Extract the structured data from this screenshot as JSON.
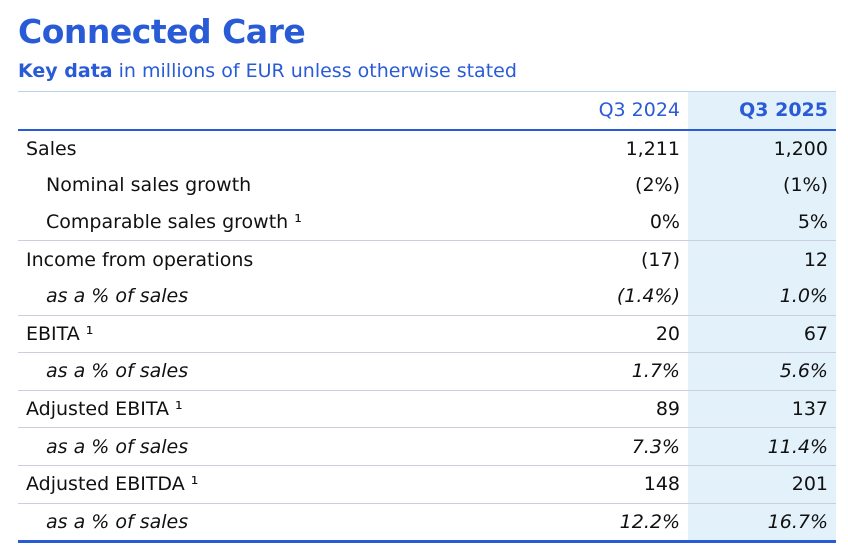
{
  "header": {
    "title": "Connected Care",
    "subtitle_bold": "Key data",
    "subtitle_rest": "in millions of EUR unless otherwise stated"
  },
  "table": {
    "columns": [
      "Q3 2024",
      "Q3 2025"
    ],
    "rows": [
      [
        "Sales",
        "1,211",
        "1,200"
      ],
      [
        "Nominal sales growth",
        "(2%)",
        "(1%)"
      ],
      [
        "Comparable sales growth ¹",
        "0%",
        "5%"
      ],
      [
        "Income from operations",
        "(17)",
        "12"
      ],
      [
        "as a % of sales",
        "(1.4%)",
        "1.0%"
      ],
      [
        "EBITA ¹",
        "20",
        "67"
      ],
      [
        "as a % of sales",
        "1.7%",
        "5.6%"
      ],
      [
        "Adjusted EBITA ¹",
        "89",
        "137"
      ],
      [
        "as a % of sales",
        "7.3%",
        "11.4%"
      ],
      [
        "Adjusted EBITDA ¹",
        "148",
        "201"
      ],
      [
        "as a % of sales",
        "12.2%",
        "16.7%"
      ]
    ]
  }
}
